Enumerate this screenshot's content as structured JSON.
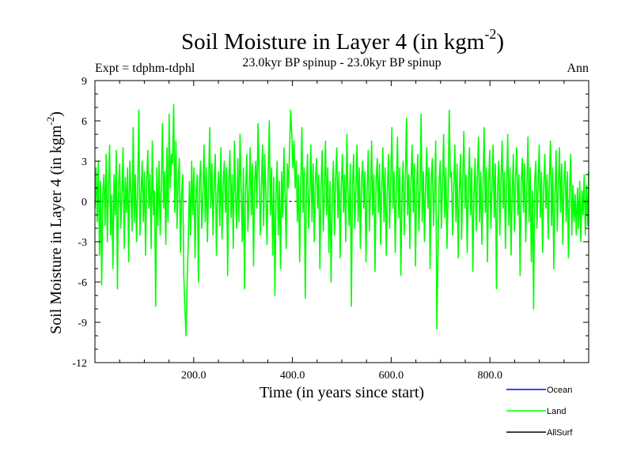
{
  "chart_data": {
    "type": "line",
    "title": "Soil Moisture in Layer 4 (in kgm",
    "title_sup": "-2",
    "title_close": ")",
    "subtitle_left": "Expt = tdphm-tdphl",
    "subtitle_center": "23.0kyr BP spinup - 23.0kyr BP spinup",
    "subtitle_right": "Ann",
    "xlabel": "Time (in years since start)",
    "ylabel": "Soil Moisture in Layer 4 (in kgm",
    "ylabel_sup": "-2",
    "ylabel_close": ")",
    "xlim": [
      0,
      1000
    ],
    "ylim": [
      -12,
      9
    ],
    "xticks": [
      200,
      400,
      600,
      800
    ],
    "xtick_labels": [
      "200.0",
      "400.0",
      "600.0",
      "800.0"
    ],
    "yticks": [
      9,
      6,
      3,
      0,
      -3,
      -6,
      -9,
      -12
    ],
    "ytick_labels": [
      "9",
      "6",
      "3",
      "0",
      "-3",
      "-6",
      "-9",
      "-12"
    ],
    "zero_line": 0,
    "legend": [
      {
        "name": "Ocean",
        "color": "#0000ff"
      },
      {
        "name": "Land",
        "color": "#00ff00"
      },
      {
        "name": "AllSurf",
        "color": "#000000"
      }
    ],
    "series": [
      {
        "name": "Land",
        "color": "#00ff00",
        "x_start": 0,
        "x_end": 1000,
        "values": [
          -0.5,
          2.5,
          -1.5,
          3.0,
          -4.0,
          1.5,
          -6.2,
          0.8,
          2.0,
          -1.8,
          3.5,
          -3.0,
          1.0,
          4.2,
          -2.5,
          0.5,
          -5.0,
          2.0,
          -1.0,
          3.8,
          -6.5,
          1.2,
          2.8,
          -2.0,
          0.5,
          4.0,
          -3.5,
          1.8,
          -0.8,
          2.5,
          -4.5,
          3.0,
          0.8,
          -2.2,
          5.5,
          -1.5,
          2.0,
          -3.0,
          1.0,
          6.8,
          -2.5,
          0.5,
          3.0,
          -1.5,
          2.2,
          -4.0,
          1.5,
          3.8,
          -0.5,
          2.0,
          -3.5,
          4.5,
          -1.0,
          0.8,
          -7.8,
          2.5,
          -1.8,
          3.0,
          -2.5,
          1.0,
          5.8,
          -0.5,
          2.2,
          -3.2,
          4.0,
          -1.5,
          6.5,
          1.0,
          3.5,
          2.8,
          7.2,
          -0.8,
          4.5,
          -2.0,
          1.5,
          3.2,
          -3.8,
          0.5,
          2.0,
          -5.5,
          -8.0,
          -10.0,
          -6.0,
          -3.0,
          1.5,
          -2.5,
          3.0,
          -1.0,
          2.5,
          -4.2,
          0.8,
          2.0,
          -6.0,
          1.5,
          3.0,
          -2.0,
          0.5,
          4.2,
          -1.5,
          2.5,
          -3.0,
          1.0,
          5.5,
          -0.5,
          2.8,
          -2.5,
          1.5,
          3.5,
          -4.0,
          0.8,
          2.2,
          -1.8,
          4.0,
          -2.8,
          1.2,
          3.0,
          -0.8,
          2.5,
          -5.5,
          1.5,
          3.8,
          -1.2,
          2.0,
          -3.5,
          4.5,
          0.5,
          -2.0,
          3.2,
          -1.5,
          5.0,
          0.8,
          -3.0,
          2.5,
          -6.5,
          1.0,
          3.5,
          -2.2,
          0.5,
          4.0,
          -1.0,
          2.8,
          -4.8,
          1.5,
          3.0,
          -0.5,
          5.8,
          2.0,
          -2.5,
          1.0,
          4.2,
          -1.8,
          3.5,
          0.5,
          -3.2,
          2.0,
          6.0,
          -1.0,
          2.5,
          -4.0,
          1.8,
          -7.0,
          0.5,
          3.0,
          -2.5,
          1.5,
          -5.0,
          2.2,
          -1.2,
          4.0,
          0.8,
          -3.5,
          2.8,
          1.0,
          3.8,
          6.8,
          5.0,
          2.5,
          4.5,
          1.0,
          3.0,
          -1.5,
          2.0,
          -4.5,
          1.2,
          5.5,
          -0.8,
          2.5,
          -7.2,
          1.0,
          3.5,
          -2.0,
          0.5,
          4.2,
          -1.5,
          2.8,
          -3.0,
          1.5,
          3.2,
          -0.5,
          2.0,
          -5.0,
          1.0,
          3.8,
          -2.2,
          0.8,
          4.5,
          -1.0,
          2.5,
          -3.8,
          1.5,
          -6.0,
          0.5,
          3.0,
          -2.5,
          1.8,
          4.0,
          -1.2,
          2.2,
          -4.2,
          1.0,
          3.5,
          -0.8,
          2.0,
          -3.0,
          5.0,
          0.5,
          -1.8,
          2.8,
          -7.8,
          1.2,
          3.5,
          -2.0,
          0.8,
          4.2,
          -1.5,
          2.5,
          -3.5,
          1.5,
          3.0,
          -0.5,
          2.2,
          -4.5,
          1.0,
          3.8,
          -2.2,
          0.5,
          4.5,
          -1.0,
          2.0,
          -5.2,
          1.5,
          3.2,
          -0.8,
          2.8,
          -3.2,
          1.0,
          4.0,
          -1.5,
          2.5,
          -4.0,
          0.8,
          3.5,
          -2.0,
          1.5,
          5.5,
          -0.5,
          2.2,
          -3.8,
          1.0,
          4.8,
          -1.2,
          2.5,
          -5.5,
          0.5,
          3.0,
          -2.5,
          1.8,
          6.2,
          -1.0,
          2.0,
          -3.5,
          1.5,
          4.2,
          -0.8,
          2.8,
          -4.8,
          1.0,
          3.5,
          -2.2,
          0.5,
          6.5,
          -1.5,
          2.2,
          -3.0,
          1.2,
          4.0,
          -0.5,
          2.5,
          -5.0,
          1.8,
          3.2,
          -1.8,
          0.8,
          4.5,
          -9.5,
          -4.0,
          1.5,
          3.0,
          -2.0,
          1.0,
          5.0,
          -1.2,
          2.5,
          -3.5,
          0.5,
          6.8,
          1.8,
          2.2,
          -2.5,
          1.0,
          4.2,
          -1.5,
          2.8,
          -4.2,
          0.8,
          3.5,
          -2.8,
          1.5,
          5.2,
          -0.5,
          2.0,
          -3.8,
          1.2,
          4.0,
          -1.0,
          2.5,
          -5.2,
          0.5,
          3.2,
          -2.2,
          1.8,
          4.8,
          -1.5,
          2.2,
          -3.2,
          1.0,
          5.5,
          -0.8,
          2.5,
          -4.5,
          1.5,
          3.8,
          -2.0,
          0.8,
          4.2,
          -1.2,
          2.8,
          -6.5,
          1.0,
          3.0,
          -2.5,
          1.5,
          4.5,
          -0.5,
          2.2,
          -3.5,
          1.2,
          5.0,
          -1.8,
          2.5,
          -4.0,
          0.5,
          3.5,
          -2.2,
          1.8,
          4.0,
          -1.0,
          2.0,
          -5.5,
          1.5,
          3.2,
          -0.8,
          2.8,
          -3.0,
          1.0,
          4.8,
          -1.5,
          2.5,
          -4.5,
          0.8,
          -8.0,
          1.5,
          3.0,
          -2.0,
          1.2,
          4.2,
          -1.2,
          2.2,
          -3.8,
          1.0,
          3.5,
          -0.5,
          2.0,
          -2.8,
          1.5,
          4.5,
          -1.8,
          2.5,
          -5.0,
          0.5,
          3.8,
          -2.2,
          1.0,
          4.0,
          -0.8,
          2.8,
          -3.2,
          1.5,
          3.0,
          -1.5,
          2.2,
          -4.2,
          0.8,
          3.5,
          -2.5,
          1.2,
          -1.5,
          0.5,
          -2.5,
          1.0,
          -2.0,
          1.5,
          -3.0,
          0.8,
          -1.0,
          2.0,
          -2.5,
          1.2,
          -1.8,
          2.2
        ]
      }
    ]
  }
}
